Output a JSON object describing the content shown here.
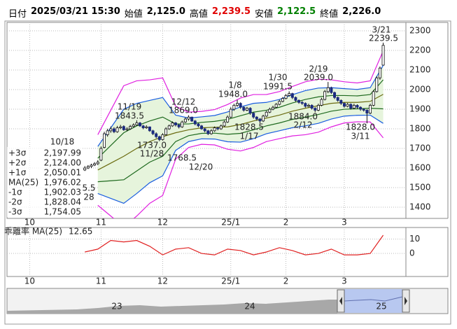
{
  "header": {
    "items": [
      {
        "label": "日付",
        "value": "2025/03/21 15:30",
        "color": "#000000"
      },
      {
        "label": "始値",
        "value": "2,125.0",
        "color": "#000000"
      },
      {
        "label": "高値",
        "value": "2,239.5",
        "color": "#e00000"
      },
      {
        "label": "安値",
        "value": "2,122.5",
        "color": "#008000"
      },
      {
        "label": "終値",
        "value": "2,226.0",
        "color": "#000000"
      }
    ]
  },
  "chart_data": [
    {
      "type": "candlestick",
      "ylim": [
        1343,
        2343
      ],
      "yticks": [
        1400,
        1500,
        1600,
        1700,
        1800,
        1900,
        2000,
        2100,
        2200,
        2300
      ],
      "xlim": [
        -7,
        116
      ],
      "xticks": [
        {
          "value": 0,
          "label": "10"
        },
        {
          "value": 22,
          "label": "11"
        },
        {
          "value": 41,
          "label": "12"
        },
        {
          "value": 62,
          "label": "25/1"
        },
        {
          "value": 79,
          "label": "2"
        },
        {
          "value": 97,
          "label": "3"
        }
      ],
      "grid": true,
      "up_color": "#ffffff",
      "down_color": "#1a2a80",
      "candles": {
        "x": [
          17,
          18,
          19,
          20,
          21,
          22,
          23,
          24,
          25,
          26,
          27,
          28,
          29,
          30,
          31,
          32,
          33,
          34,
          35,
          36,
          37,
          38,
          39,
          40,
          41,
          42,
          43,
          44,
          45,
          46,
          47,
          48,
          49,
          50,
          51,
          52,
          53,
          54,
          55,
          56,
          57,
          58,
          59,
          60,
          61,
          62,
          63,
          64,
          65,
          66,
          67,
          68,
          69,
          70,
          71,
          72,
          73,
          74,
          75,
          76,
          77,
          78,
          79,
          80,
          81,
          82,
          83,
          84,
          85,
          86,
          87,
          88,
          89,
          90,
          91,
          92,
          93,
          94,
          95,
          96,
          97,
          98,
          99,
          100,
          101,
          102,
          103,
          104,
          105,
          106,
          107,
          108,
          109
        ],
        "open": [
          1590,
          1600,
          1608,
          1615,
          1622,
          1640,
          1705,
          1770,
          1790,
          1800,
          1785,
          1805,
          1812,
          1795,
          1800,
          1812,
          1820,
          1830,
          1815,
          1805,
          1810,
          1790,
          1775,
          1760,
          1745,
          1770,
          1800,
          1815,
          1830,
          1820,
          1810,
          1835,
          1850,
          1860,
          1840,
          1825,
          1815,
          1800,
          1790,
          1775,
          1790,
          1805,
          1800,
          1815,
          1835,
          1860,
          1900,
          1920,
          1930,
          1910,
          1895,
          1905,
          1880,
          1860,
          1850,
          1840,
          1865,
          1885,
          1900,
          1910,
          1925,
          1940,
          1955,
          1970,
          1980,
          1960,
          1945,
          1935,
          1930,
          1915,
          1920,
          1905,
          1895,
          1920,
          1950,
          1990,
          2010,
          1985,
          1960,
          1945,
          1930,
          1915,
          1925,
          1905,
          1920,
          1910,
          1900,
          1895,
          1880,
          1920,
          1990,
          2060,
          2125
        ],
        "high": [
          1610,
          1615,
          1622,
          1630,
          1640,
          1710,
          1785,
          1800,
          1812,
          1808,
          1815,
          1820,
          1818,
          1808,
          1820,
          1828,
          1843.5,
          1835,
          1820,
          1818,
          1812,
          1795,
          1782,
          1765,
          1778,
          1808,
          1822,
          1838,
          1835,
          1825,
          1842,
          1858,
          1869,
          1862,
          1845,
          1830,
          1820,
          1805,
          1795,
          1798,
          1812,
          1810,
          1822,
          1842,
          1868,
          1910,
          1928,
          1948,
          1935,
          1915,
          1912,
          1910,
          1885,
          1865,
          1855,
          1872,
          1892,
          1908,
          1918,
          1932,
          1948,
          1962,
          1978,
          1991.5,
          1984,
          1965,
          1950,
          1942,
          1935,
          1928,
          1925,
          1910,
          1928,
          1958,
          1998,
          2039,
          2015,
          1990,
          1965,
          1950,
          1935,
          1932,
          1930,
          1928,
          1925,
          1915,
          1905,
          1900,
          1928,
          1998,
          2068,
          2118,
          2239.5
        ],
        "low": [
          1585,
          1595,
          1600,
          1610,
          1615,
          1635,
          1700,
          1760,
          1780,
          1778,
          1780,
          1798,
          1790,
          1788,
          1795,
          1806,
          1815,
          1810,
          1798,
          1800,
          1785,
          1768,
          1752,
          1737,
          1740,
          1765,
          1795,
          1810,
          1812,
          1802,
          1805,
          1830,
          1842,
          1835,
          1818,
          1808,
          1795,
          1782,
          1768.5,
          1770,
          1785,
          1792,
          1795,
          1810,
          1830,
          1855,
          1892,
          1912,
          1902,
          1888,
          1890,
          1872,
          1852,
          1842,
          1828.5,
          1835,
          1860,
          1880,
          1895,
          1905,
          1920,
          1935,
          1950,
          1965,
          1952,
          1938,
          1928,
          1922,
          1908,
          1910,
          1898,
          1884,
          1890,
          1915,
          1945,
          1982,
          1978,
          1952,
          1938,
          1922,
          1908,
          1910,
          1898,
          1900,
          1902,
          1892,
          1888,
          1828,
          1875,
          1915,
          1985,
          2050,
          2122.5
        ],
        "close": [
          1600,
          1608,
          1615,
          1622,
          1630,
          1700,
          1775,
          1790,
          1800,
          1785,
          1805,
          1810,
          1795,
          1800,
          1812,
          1820,
          1830,
          1815,
          1805,
          1810,
          1790,
          1775,
          1760,
          1745,
          1770,
          1800,
          1815,
          1830,
          1820,
          1810,
          1835,
          1850,
          1860,
          1840,
          1825,
          1815,
          1800,
          1790,
          1775,
          1790,
          1805,
          1800,
          1815,
          1835,
          1860,
          1900,
          1920,
          1930,
          1910,
          1895,
          1905,
          1880,
          1860,
          1850,
          1840,
          1865,
          1885,
          1900,
          1910,
          1925,
          1940,
          1955,
          1970,
          1980,
          1960,
          1945,
          1935,
          1930,
          1915,
          1920,
          1905,
          1895,
          1920,
          1950,
          1990,
          2010,
          1985,
          1960,
          1945,
          1930,
          1915,
          1925,
          1905,
          1920,
          1910,
          1900,
          1895,
          1880,
          1920,
          1990,
          2060,
          2110,
          2226
        ]
      },
      "bands": {
        "x": [
          21,
          25,
          29,
          33,
          37,
          41,
          45,
          49,
          53,
          57,
          61,
          65,
          69,
          73,
          77,
          81,
          85,
          89,
          93,
          97,
          101,
          105,
          109
        ],
        "fill_color": "#e6f4dc",
        "series": [
          {
            "name": "+3σ",
            "color": "#e020e0",
            "values": [
              1770,
              1895,
              2020,
              2045,
              2050,
              2060,
              1915,
              1885,
              1889,
              1898,
              1924,
              1957,
              1975,
              1975,
              1990,
              2016,
              2040,
              2053,
              2050,
              2040,
              2034,
              2045,
              2197.99
            ],
            "value_labels": [
              null,
              null,
              null,
              null,
              null,
              null,
              null,
              null,
              null,
              null,
              null,
              null,
              null,
              null,
              null,
              null,
              null,
              null,
              null,
              null,
              null,
              null,
              "2,197.99"
            ]
          },
          {
            "name": "+2σ",
            "color": "#1a5ee0",
            "values": [
              1710,
              1805,
              1900,
              1930,
              1945,
              1960,
              1870,
              1855,
              1861,
              1868,
              1886,
              1912,
              1930,
              1935,
              1950,
              1974,
              1995,
              2008,
              2010,
              2005,
              2001,
              2010,
              2124.0
            ],
            "value_labels": [
              null,
              null,
              null,
              null,
              null,
              null,
              null,
              null,
              null,
              null,
              null,
              null,
              null,
              null,
              null,
              null,
              null,
              null,
              null,
              null,
              null,
              null,
              "2,124.00"
            ]
          },
          {
            "name": "+1σ",
            "color": "#1f6a1f",
            "values": [
              1650,
              1715,
              1780,
              1815,
              1840,
              1860,
              1825,
              1825,
              1833,
              1838,
              1848,
              1867,
              1885,
              1895,
              1910,
              1932,
              1950,
              1963,
              1970,
              1970,
              1968,
              1975,
              2050.01
            ],
            "value_labels": [
              null,
              null,
              null,
              null,
              null,
              null,
              null,
              null,
              null,
              null,
              null,
              null,
              null,
              null,
              null,
              null,
              null,
              null,
              null,
              null,
              null,
              null,
              "2,050.01"
            ]
          },
          {
            "name": "MA(25)",
            "color": "#6b6b10",
            "values": [
              1590,
              1625,
              1660,
              1700,
              1735,
              1760,
              1780,
              1795,
              1805,
              1808,
              1810,
              1822,
              1840,
              1855,
              1870,
              1890,
              1905,
              1918,
              1930,
              1935,
              1935,
              1940,
              1976.02
            ],
            "value_labels": [
              null,
              null,
              null,
              null,
              null,
              null,
              null,
              null,
              null,
              null,
              null,
              null,
              null,
              null,
              null,
              null,
              null,
              null,
              null,
              null,
              null,
              null,
              "1,976.02"
            ]
          },
          {
            "name": "-1σ",
            "color": "#1f6a1f",
            "values": [
              1530,
              1535,
              1540,
              1585,
              1630,
              1660,
              1735,
              1765,
              1777,
              1778,
              1772,
              1777,
              1795,
              1815,
              1830,
              1848,
              1860,
              1873,
              1890,
              1900,
              1902,
              1905,
              1902.03
            ],
            "value_labels": [
              null,
              null,
              null,
              null,
              null,
              null,
              null,
              null,
              null,
              null,
              null,
              null,
              null,
              null,
              null,
              null,
              null,
              null,
              null,
              null,
              null,
              null,
              "1,902.03"
            ]
          },
          {
            "name": "-2σ",
            "color": "#1a5ee0",
            "values": [
              1470,
              1445,
              1420,
              1470,
              1525,
              1560,
              1690,
              1735,
              1749,
              1748,
              1734,
              1732,
              1750,
              1775,
              1790,
              1806,
              1815,
              1828,
              1850,
              1865,
              1869,
              1870,
              1828.04
            ],
            "value_labels": [
              null,
              null,
              null,
              null,
              null,
              null,
              null,
              null,
              null,
              null,
              null,
              null,
              null,
              null,
              null,
              null,
              null,
              null,
              null,
              null,
              null,
              null,
              "1,828.04"
            ]
          },
          {
            "name": "-3σ",
            "color": "#e020e0",
            "values": [
              1410,
              1355,
              1300,
              1355,
              1420,
              1460,
              1645,
              1705,
              1721,
              1718,
              1696,
              1687,
              1705,
              1735,
              1750,
              1764,
              1770,
              1783,
              1810,
              1830,
              1836,
              1835,
              1754.05
            ],
            "value_labels": [
              null,
              null,
              null,
              null,
              null,
              null,
              null,
              null,
              null,
              null,
              null,
              null,
              null,
              null,
              null,
              null,
              null,
              null,
              null,
              null,
              null,
              null,
              "1,754.05"
            ]
          }
        ]
      },
      "annotations": [
        {
          "lines": [
            "10/18"
          ]
        },
        {
          "lines": [
            "5.5",
            "28"
          ]
        },
        {
          "lines": [
            "11/19",
            "1843.5"
          ]
        },
        {
          "lines": [
            "1737.0",
            "11/28"
          ]
        },
        {
          "lines": [
            "12/12",
            "1869.0"
          ]
        },
        {
          "lines": [
            "1768.5",
            "12/20"
          ]
        },
        {
          "lines": [
            "1/8",
            "1948.0"
          ]
        },
        {
          "lines": [
            "1828.5",
            "1/17"
          ]
        },
        {
          "lines": [
            "1/30",
            "1991.5"
          ]
        },
        {
          "lines": [
            "1884.0",
            "2/12"
          ]
        },
        {
          "lines": [
            "2/19",
            "2039.0"
          ]
        },
        {
          "lines": [
            "1828.0",
            "3/11"
          ]
        },
        {
          "lines": [
            "3/21",
            "2239.5"
          ]
        }
      ]
    },
    {
      "type": "line",
      "title": "乖離率 MA(25)",
      "color": "#e02020",
      "ylim": [
        -16,
        18
      ],
      "yticks": [
        0,
        10
      ],
      "xlim": [
        -7,
        116
      ],
      "xticks": [
        {
          "value": 0,
          "label": "10"
        },
        {
          "value": 22,
          "label": "11"
        },
        {
          "value": 41,
          "label": "12"
        },
        {
          "value": 62,
          "label": "25/1"
        },
        {
          "value": 79,
          "label": "2"
        },
        {
          "value": 97,
          "label": "3"
        }
      ],
      "x": [
        17,
        21,
        25,
        29,
        33,
        37,
        41,
        45,
        49,
        53,
        57,
        61,
        65,
        69,
        73,
        77,
        81,
        85,
        89,
        93,
        97,
        101,
        105,
        109
      ],
      "values": [
        1,
        3,
        9,
        8,
        9,
        5,
        -1,
        3,
        4,
        0,
        -1,
        3,
        2,
        -1,
        1,
        4,
        2,
        -1,
        0,
        3,
        -1,
        -1,
        0,
        12.65
      ]
    }
  ],
  "navigator": {
    "labels": [
      "23",
      "24",
      "25"
    ]
  }
}
